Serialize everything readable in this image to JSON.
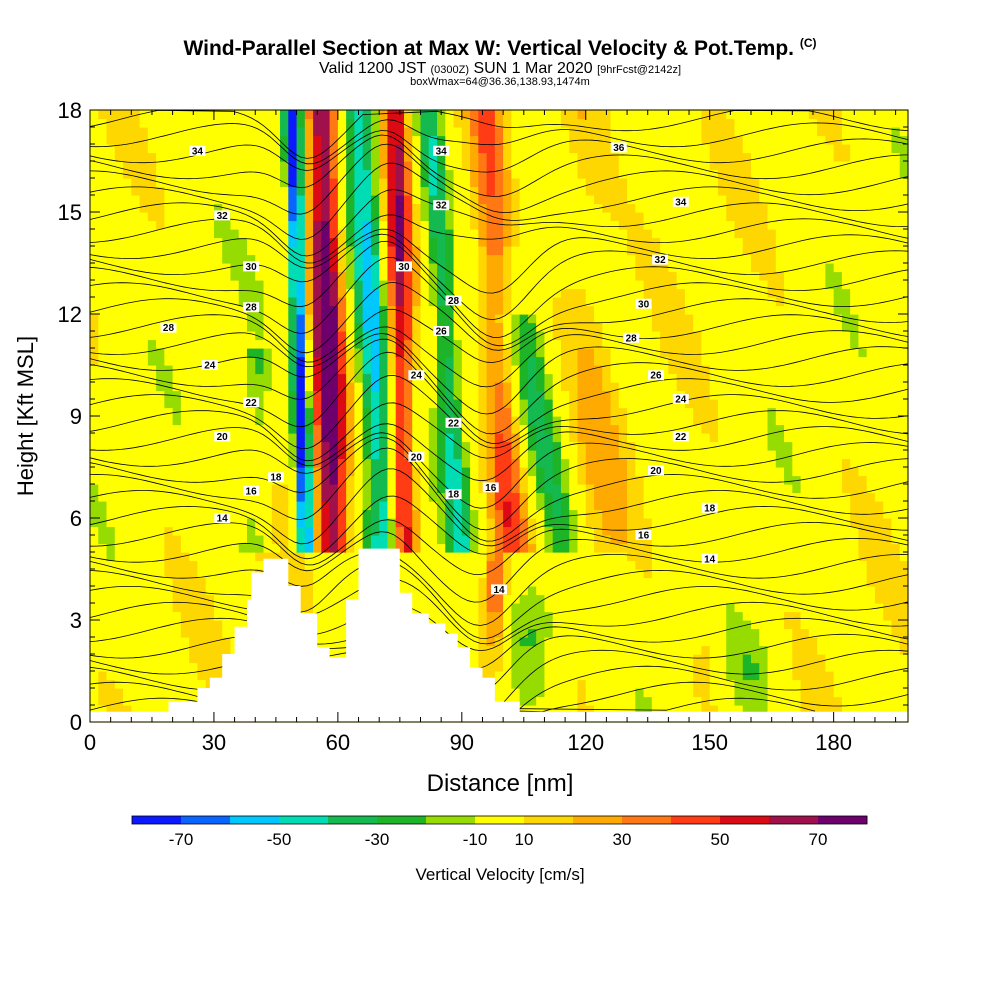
{
  "title": {
    "main": "Wind-Parallel Section at Max W: Vertical Velocity & Pot.Temp.",
    "copyright": "(C)"
  },
  "subtitle": {
    "valid_prefix": "Valid 1200 JST",
    "utc": "(0300Z)",
    "date": "SUN 1 Mar 2020",
    "forecast": "[9hrFcst@2142z]",
    "box_info": "boxWmax=64@36.36,138.93,1474m"
  },
  "colors": {
    "contour": "#000000",
    "terrain": "#ffffff",
    "frame": "#000000"
  },
  "chart_data": {
    "type": "heatmap",
    "xlabel": "Distance [nm]",
    "ylabel": "Height [Kft MSL]",
    "xlim": [
      0,
      198
    ],
    "ylim": [
      0,
      18
    ],
    "xticks": [
      0,
      30,
      60,
      90,
      120,
      150,
      180
    ],
    "yticks": [
      0,
      3,
      6,
      9,
      12,
      15,
      18
    ],
    "colorbar": {
      "label": "Vertical Velocity [cm/s]",
      "tick_labels": [
        -70,
        -50,
        -30,
        -10,
        10,
        30,
        50,
        70
      ],
      "levels": [
        -80,
        -70,
        -60,
        -50,
        -40,
        -30,
        -20,
        -10,
        10,
        20,
        30,
        40,
        50,
        60,
        70,
        80
      ],
      "colors": [
        "#0a19ff",
        "#0a64ff",
        "#00c8ff",
        "#00dcb4",
        "#14b950",
        "#1eb428",
        "#96dc00",
        "#ffff00",
        "#ffd700",
        "#ffaa00",
        "#ff7814",
        "#ff3c14",
        "#dc0a14",
        "#a0104b",
        "#6e006e"
      ]
    },
    "terrain_profile": [
      [
        0,
        0.3
      ],
      [
        19,
        0.3
      ],
      [
        19,
        0.6
      ],
      [
        26,
        0.6
      ],
      [
        26,
        1.0
      ],
      [
        29,
        1.0
      ],
      [
        29,
        1.3
      ],
      [
        32,
        1.3
      ],
      [
        32,
        2.0
      ],
      [
        35,
        2.0
      ],
      [
        35,
        2.8
      ],
      [
        38,
        2.8
      ],
      [
        38,
        3.6
      ],
      [
        39,
        3.6
      ],
      [
        39,
        4.4
      ],
      [
        42,
        4.4
      ],
      [
        42,
        4.8
      ],
      [
        48,
        4.8
      ],
      [
        48,
        4.0
      ],
      [
        51,
        4.0
      ],
      [
        51,
        3.2
      ],
      [
        55,
        3.2
      ],
      [
        55,
        2.2
      ],
      [
        58,
        2.2
      ],
      [
        58,
        1.9
      ],
      [
        62,
        1.9
      ],
      [
        62,
        3.6
      ],
      [
        65,
        3.6
      ],
      [
        65,
        5.1
      ],
      [
        75,
        5.1
      ],
      [
        75,
        3.8
      ],
      [
        78,
        3.8
      ],
      [
        78,
        3.2
      ],
      [
        82,
        3.2
      ],
      [
        82,
        2.9
      ],
      [
        86,
        2.9
      ],
      [
        86,
        2.6
      ],
      [
        89,
        2.6
      ],
      [
        89,
        2.2
      ],
      [
        92,
        2.2
      ],
      [
        92,
        1.6
      ],
      [
        95,
        1.6
      ],
      [
        95,
        1.3
      ],
      [
        98,
        1.3
      ],
      [
        98,
        0.6
      ],
      [
        104,
        0.6
      ],
      [
        104,
        0.3
      ],
      [
        198,
        0.3
      ]
    ],
    "theta_labels": [
      {
        "x": 26,
        "y": 16.8,
        "v": "34"
      },
      {
        "x": 32,
        "y": 14.9,
        "v": "32"
      },
      {
        "x": 39,
        "y": 13.4,
        "v": "30"
      },
      {
        "x": 39,
        "y": 12.2,
        "v": "28"
      },
      {
        "x": 19,
        "y": 11.6,
        "v": "28"
      },
      {
        "x": 29,
        "y": 10.5,
        "v": "24"
      },
      {
        "x": 39,
        "y": 9.4,
        "v": "22"
      },
      {
        "x": 32,
        "y": 8.4,
        "v": "20"
      },
      {
        "x": 45,
        "y": 7.2,
        "v": "18"
      },
      {
        "x": 39,
        "y": 6.8,
        "v": "16"
      },
      {
        "x": 32,
        "y": 6.0,
        "v": "14"
      },
      {
        "x": 85,
        "y": 16.8,
        "v": "34"
      },
      {
        "x": 85,
        "y": 15.2,
        "v": "32"
      },
      {
        "x": 76,
        "y": 13.4,
        "v": "30"
      },
      {
        "x": 88,
        "y": 12.4,
        "v": "28"
      },
      {
        "x": 85,
        "y": 11.5,
        "v": "26"
      },
      {
        "x": 79,
        "y": 10.2,
        "v": "24"
      },
      {
        "x": 88,
        "y": 8.8,
        "v": "22"
      },
      {
        "x": 79,
        "y": 7.8,
        "v": "20"
      },
      {
        "x": 88,
        "y": 6.7,
        "v": "18"
      },
      {
        "x": 97,
        "y": 6.9,
        "v": "16"
      },
      {
        "x": 99,
        "y": 3.9,
        "v": "14"
      },
      {
        "x": 128,
        "y": 16.9,
        "v": "36"
      },
      {
        "x": 143,
        "y": 15.3,
        "v": "34"
      },
      {
        "x": 138,
        "y": 13.6,
        "v": "32"
      },
      {
        "x": 134,
        "y": 12.3,
        "v": "30"
      },
      {
        "x": 131,
        "y": 11.3,
        "v": "28"
      },
      {
        "x": 137,
        "y": 10.2,
        "v": "26"
      },
      {
        "x": 143,
        "y": 9.5,
        "v": "24"
      },
      {
        "x": 143,
        "y": 8.4,
        "v": "22"
      },
      {
        "x": 137,
        "y": 7.4,
        "v": "20"
      },
      {
        "x": 150,
        "y": 6.3,
        "v": "18"
      },
      {
        "x": 134,
        "y": 5.5,
        "v": "16"
      },
      {
        "x": 150,
        "y": 4.8,
        "v": "14"
      }
    ]
  }
}
